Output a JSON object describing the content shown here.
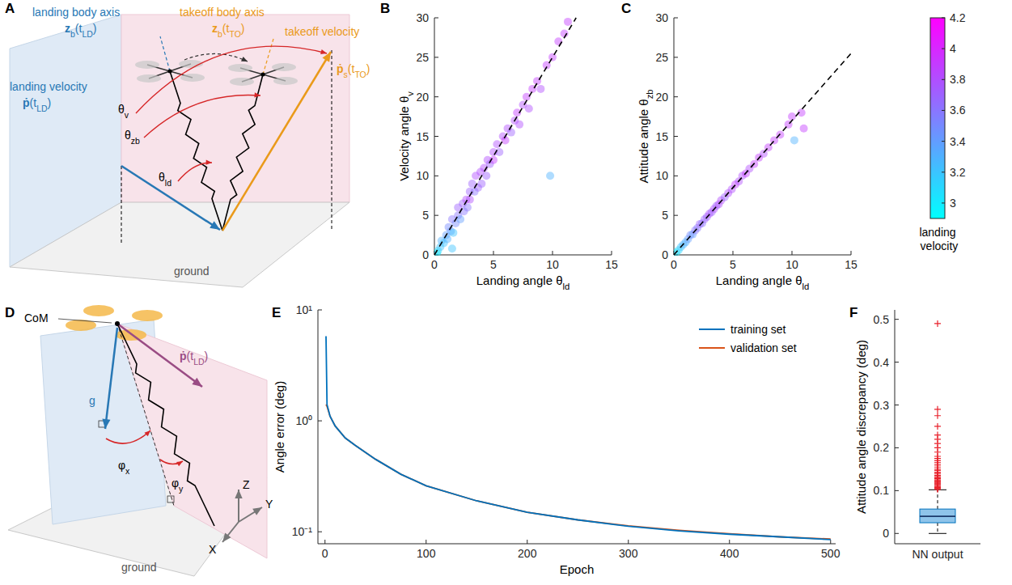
{
  "diagrams": [
    {
      "panel_label": "A",
      "labels": {
        "landing_body_axis": "landing body axis",
        "landing_body_axis_symbol": "zb(tLD)",
        "takeoff_body_axis": "takeoff body axis",
        "takeoff_body_axis_symbol": "zb(tTO)",
        "takeoff_velocity": "takeoff velocity",
        "takeoff_velocity_symbol": "ṗs(tTO)",
        "landing_velocity": "landing velocity",
        "landing_velocity_symbol": "ṗ(tLD)",
        "theta_v": "θv",
        "theta_zb": "θzb",
        "theta_ld": "θld",
        "ground": "ground"
      }
    },
    {
      "panel_label": "D",
      "labels": {
        "com": "CoM",
        "gravity": "g",
        "landing_velocity_symbol": "ṗ(tLD)",
        "phi_x": "φx",
        "phi_y": "φy",
        "axis_z": "Z",
        "axis_y": "Y",
        "axis_x": "X",
        "ground": "ground"
      }
    }
  ],
  "chart_data": [
    {
      "type": "scatter",
      "panel_label": "B",
      "x_label": "Landing angle θld",
      "y_label": "Velocity angle θv",
      "xlim": [
        0,
        15
      ],
      "ylim": [
        0,
        30
      ],
      "xticks": [
        0,
        5,
        10,
        15
      ],
      "yticks": [
        0,
        5,
        10,
        15,
        20,
        25,
        30
      ],
      "series": [
        {
          "type": "scatter",
          "marker": "circle",
          "x": [
            0.3,
            0.5,
            0.6,
            0.8,
            1,
            1.1,
            1.2,
            1.4,
            1.5,
            1.6,
            1.8,
            2,
            2,
            2.2,
            2.4,
            2.5,
            2.7,
            2.8,
            3,
            3,
            3.2,
            3.4,
            3.5,
            3.7,
            3.9,
            4,
            4.2,
            4.4,
            4.5,
            4.7,
            5,
            5,
            5.3,
            5.5,
            5.8,
            6,
            6.2,
            6.5,
            6.8,
            7,
            7.2,
            7.5,
            7.8,
            8,
            8.3,
            8.7,
            9,
            9.5,
            10,
            10.5,
            11,
            11.3,
            9.8,
            0.2,
            1.5
          ],
          "values": [
            0.5,
            1,
            1.8,
            1.5,
            2.5,
            2,
            3.5,
            3,
            4.5,
            2.8,
            4,
            5,
            6,
            4.5,
            6.5,
            5.5,
            7,
            6,
            8,
            7,
            9,
            8,
            10,
            8.5,
            10.5,
            9,
            11,
            10,
            12,
            11.5,
            13,
            12,
            14,
            13,
            15,
            14.5,
            16,
            15.5,
            17,
            18,
            16.5,
            19,
            20,
            18.5,
            21,
            22,
            21,
            24,
            25,
            27,
            28,
            29.5,
            10,
            0.2,
            0.8
          ],
          "landing_velocity": [
            3.1,
            3.2,
            3.3,
            3.2,
            3.4,
            3.3,
            3.5,
            3.4,
            3.6,
            3.2,
            3.5,
            3.6,
            3.7,
            3.4,
            3.7,
            3.6,
            3.8,
            3.6,
            3.7,
            3.8,
            3.7,
            3.6,
            3.8,
            3.7,
            3.8,
            3.7,
            3.8,
            3.7,
            3.8,
            3.7,
            3.8,
            3.9,
            3.8,
            3.7,
            3.8,
            3.9,
            3.8,
            3.7,
            3.8,
            3.9,
            3.8,
            3.8,
            3.9,
            3.8,
            3.9,
            3.9,
            3.8,
            3.9,
            3.9,
            3.9,
            3.9,
            3.9,
            3.3,
            3.0,
            3.2
          ]
        },
        {
          "type": "line",
          "line_style": "dashed",
          "color": "#000000",
          "x": [
            0,
            12
          ],
          "values": [
            0,
            30
          ]
        }
      ]
    },
    {
      "type": "scatter",
      "panel_label": "C",
      "x_label": "Landing angle θld",
      "y_label": "Attitude angle θzb",
      "xlim": [
        0,
        15
      ],
      "ylim": [
        0,
        30
      ],
      "xticks": [
        0,
        5,
        10,
        15
      ],
      "yticks": [
        0,
        5,
        10,
        15,
        20,
        25,
        30
      ],
      "series": [
        {
          "type": "scatter",
          "marker": "circle",
          "x": [
            0.2,
            0.4,
            0.6,
            0.8,
            1,
            1.2,
            1.4,
            1.6,
            1.8,
            2,
            2.2,
            2.4,
            2.6,
            2.8,
            3,
            3.2,
            3.4,
            3.6,
            3.8,
            4,
            4.3,
            4.6,
            4.9,
            5.2,
            5.5,
            5.8,
            6.1,
            6.4,
            6.8,
            7.2,
            7.6,
            8,
            8.5,
            9,
            9.7,
            10,
            10.2,
            10.8,
            11
          ],
          "values": [
            0.3,
            0.6,
            1,
            1.3,
            1.6,
            2,
            2.5,
            2.6,
            3.1,
            3.4,
            3.9,
            4,
            4.5,
            4.8,
            5.2,
            5.4,
            5.8,
            6.2,
            6.4,
            6.9,
            7.3,
            7.8,
            8.3,
            8.9,
            9.3,
            10,
            10.3,
            10.9,
            11.5,
            12.3,
            12.8,
            13.6,
            14.5,
            15.2,
            16.5,
            17.5,
            14.5,
            18,
            16
          ],
          "landing_velocity": [
            3.0,
            3.1,
            3.2,
            3.3,
            3.3,
            3.4,
            3.5,
            3.4,
            3.6,
            3.6,
            3.7,
            3.6,
            3.7,
            3.7,
            3.8,
            3.7,
            3.8,
            3.7,
            3.8,
            3.8,
            3.7,
            3.8,
            3.8,
            3.9,
            3.8,
            3.8,
            3.9,
            3.8,
            3.9,
            3.9,
            3.8,
            3.9,
            3.9,
            3.9,
            3.9,
            3.9,
            3.3,
            3.9,
            3.9
          ]
        },
        {
          "type": "line",
          "line_style": "dashed",
          "color": "#000000",
          "x": [
            0,
            15
          ],
          "values": [
            0,
            25.5
          ]
        }
      ],
      "colorbar": {
        "label": "landing velocity",
        "range": [
          2.9,
          4.2
        ],
        "ticks": [
          3,
          3.2,
          3.4,
          3.6,
          3.8,
          4,
          4.2
        ]
      }
    },
    {
      "type": "line",
      "panel_label": "E",
      "x_label": "Epoch",
      "y_label": "Angle error (deg)",
      "log": "y",
      "xlim": [
        -7,
        505
      ],
      "ylim": [
        0.078,
        10
      ],
      "xticks": [
        0,
        100,
        200,
        300,
        400,
        500
      ],
      "yticks": [
        {
          "value": 0.1,
          "label": "10⁻¹"
        },
        {
          "value": 1,
          "label": "10⁰"
        },
        {
          "value": 10,
          "label": "10¹"
        }
      ],
      "legend": "upper right",
      "x": [
        1,
        2,
        5,
        10,
        20,
        30,
        50,
        75,
        100,
        150,
        200,
        250,
        300,
        350,
        400,
        450,
        500
      ],
      "series": [
        {
          "name": "training set",
          "color": "#0072bd",
          "values": [
            5.8,
            1.4,
            1.1,
            0.9,
            0.7,
            0.6,
            0.45,
            0.33,
            0.26,
            0.19,
            0.15,
            0.128,
            0.112,
            0.102,
            0.095,
            0.09,
            0.085
          ]
        },
        {
          "name": "validation set",
          "color": "#d95319",
          "values": [
            1.4,
            1.35,
            1.1,
            0.9,
            0.7,
            0.6,
            0.45,
            0.33,
            0.26,
            0.19,
            0.15,
            0.128,
            0.113,
            0.103,
            0.096,
            0.09,
            0.086
          ]
        }
      ]
    },
    {
      "type": "box",
      "panel_label": "F",
      "y_label": "Attitude angle discrepancy (deg)",
      "categories": [
        "NN output"
      ],
      "ylim": [
        -0.024,
        0.522
      ],
      "yticks": [
        0,
        0.1,
        0.2,
        0.3,
        0.4,
        0.5
      ],
      "color": "#0072bd",
      "whisker_low": [
        0
      ],
      "q1": [
        0.025
      ],
      "median": [
        0.04
      ],
      "q3": [
        0.057
      ],
      "whisker_high": [
        0.102
      ],
      "outliers": [
        [
          0.103,
          0.105,
          0.107,
          0.108,
          0.11,
          0.112,
          0.114,
          0.116,
          0.118,
          0.12,
          0.122,
          0.125,
          0.128,
          0.13,
          0.133,
          0.136,
          0.14,
          0.143,
          0.147,
          0.15,
          0.155,
          0.16,
          0.165,
          0.17,
          0.175,
          0.18,
          0.19,
          0.2,
          0.21,
          0.22,
          0.23,
          0.25,
          0.275,
          0.29,
          0.49
        ]
      ]
    }
  ]
}
